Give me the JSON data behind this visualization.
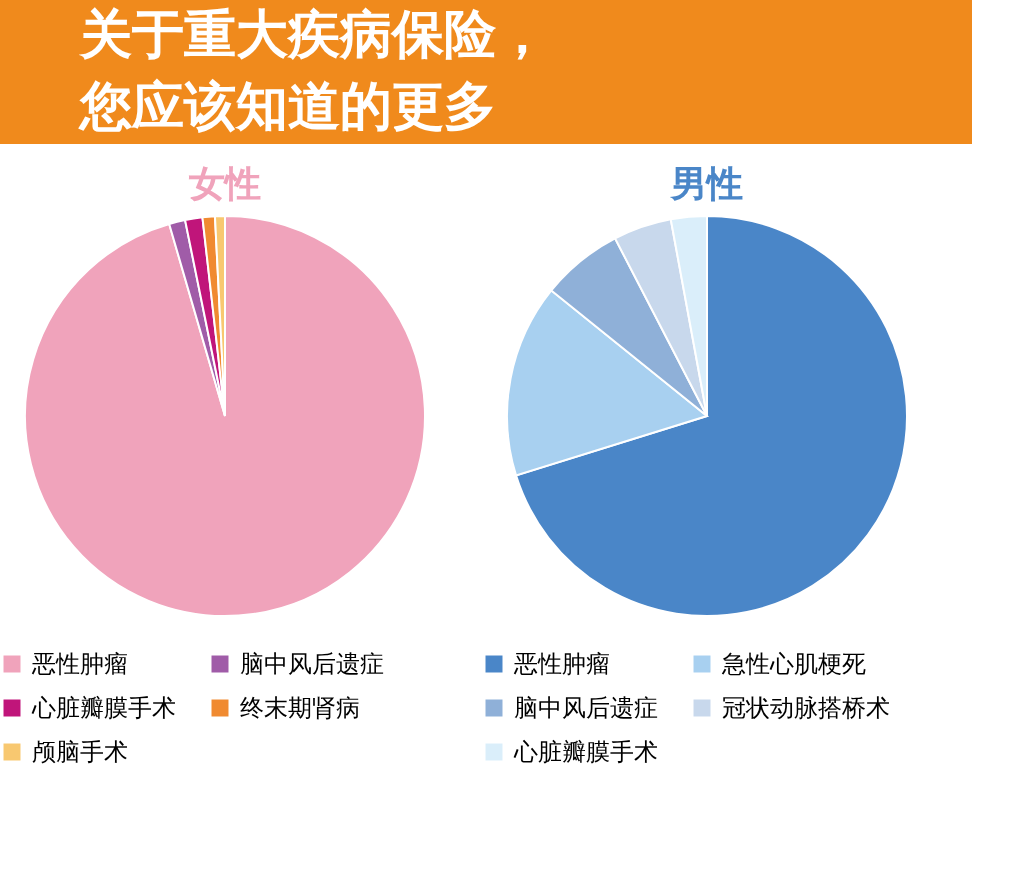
{
  "chart_data": [
    {
      "type": "other",
      "annotations": [
        "关于重大疾病保险，",
        "您应该知道的更多"
      ]
    },
    {
      "type": "pie",
      "title": "女性",
      "categories": [
        "恶性肿瘤",
        "脑中风后遗症",
        "心脏瓣膜手术",
        "终末期肾病",
        "颅脑手术"
      ],
      "values": [
        95.5,
        1.3,
        1.4,
        1.0,
        0.8
      ],
      "colors": [
        "#f0a3bb",
        "#a05ca8",
        "#c0157a",
        "#f08a30",
        "#f8c870"
      ],
      "legend": "bottom"
    },
    {
      "type": "pie",
      "title": "男性",
      "categories": [
        "恶性肿瘤",
        "急性心肌梗死",
        "脑中风后遗症",
        "冠状动脉搭桥术",
        "心脏瓣膜手术"
      ],
      "values": [
        70.2,
        15.6,
        6.6,
        4.7,
        2.9
      ],
      "colors": [
        "#4a86c8",
        "#a8d0f0",
        "#8fb0d8",
        "#c8d8ec",
        "#daeefa"
      ],
      "legend": "bottom"
    }
  ]
}
